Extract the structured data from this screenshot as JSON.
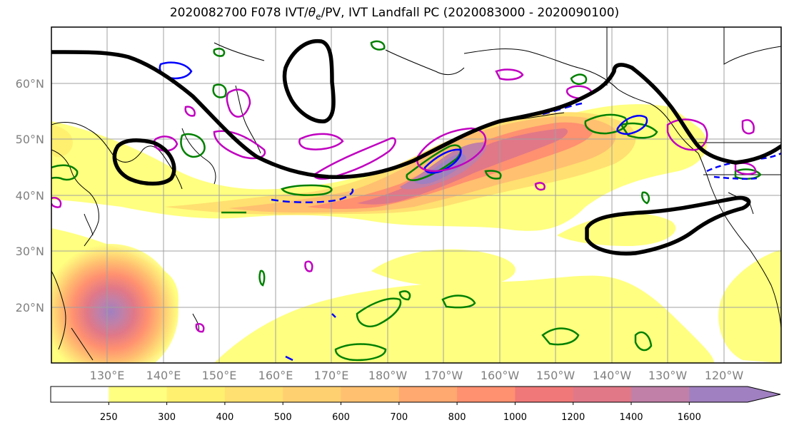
{
  "title": {
    "prefix": "2020082700 F078 IVT/",
    "theta": "θ",
    "theta_sub": "e",
    "suffix": "/PV, IVT Landfall PC (2020083000 - 2020090100)"
  },
  "axes": {
    "lat_labels": [
      "60°N",
      "50°N",
      "40°N",
      "30°N",
      "20°N"
    ],
    "lon_labels": [
      "130°E",
      "140°E",
      "150°E",
      "160°E",
      "170°E",
      "180°W",
      "170°W",
      "160°W",
      "150°W",
      "140°W",
      "130°W",
      "120°W"
    ]
  },
  "colorbar": {
    "levels": [
      "250",
      "300",
      "400",
      "500",
      "600",
      "700",
      "800",
      "1000",
      "1200",
      "1400",
      "1600"
    ],
    "colors": [
      "#ffff80",
      "#fff070",
      "#ffe070",
      "#ffd070",
      "#ffc070",
      "#ffa870",
      "#ff9070",
      "#f07878",
      "#e07888",
      "#c080a8",
      "#a080c0"
    ]
  },
  "contour_colors": {
    "pv_black": "#000000",
    "theta_green": "#008000",
    "theta_blue": "#0000ff",
    "theta_magenta": "#c000c0"
  }
}
